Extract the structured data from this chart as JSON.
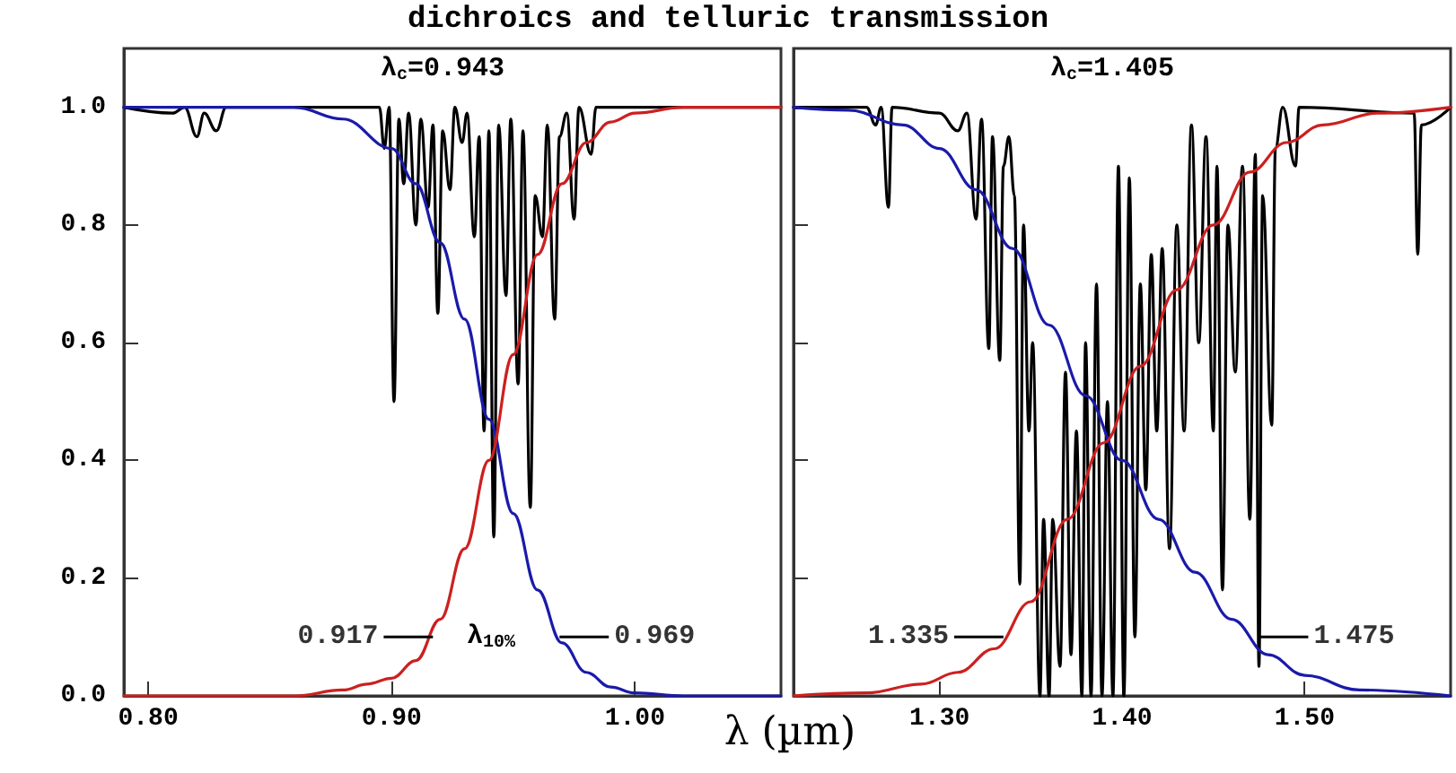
{
  "chart_data": [
    {
      "type": "line",
      "title": "dichroics and telluric transmission",
      "xlabel": "λ (µm)",
      "xlim": [
        0.79,
        1.06
      ],
      "ylim": [
        0,
        1.1
      ],
      "xticks": [
        {
          "value": 0.8,
          "label": "0.80"
        },
        {
          "value": 0.9,
          "label": "0.90"
        },
        {
          "value": 1,
          "label": "1.00"
        }
      ],
      "yticks": [
        {
          "value": 0,
          "label": "0.0"
        },
        {
          "value": 0.2,
          "label": "0.2"
        },
        {
          "value": 0.4,
          "label": "0.4"
        },
        {
          "value": 0.6,
          "label": "0.6"
        },
        {
          "value": 0.8,
          "label": "0.8"
        },
        {
          "value": 1,
          "label": "1.0"
        }
      ],
      "grid": false,
      "marker": "none",
      "line_style": "solid",
      "annotations": [
        "λ$_{c}$=0.943",
        "λ$_{10%}$",
        {
          "text": "0.917",
          "x": 0.917,
          "y": 0.1
        },
        {
          "text": "0.969",
          "x": 0.969,
          "y": 0.1
        }
      ],
      "series": [
        {
          "color": "#000000",
          "x": [
            0.79,
            0.81,
            0.815,
            0.82,
            0.823,
            0.828,
            0.832,
            0.86,
            0.895,
            0.897,
            0.899,
            0.901,
            0.903,
            0.905,
            0.907,
            0.91,
            0.912,
            0.915,
            0.917,
            0.919,
            0.921,
            0.924,
            0.926,
            0.929,
            0.931,
            0.934,
            0.936,
            0.938,
            0.94,
            0.942,
            0.944,
            0.947,
            0.949,
            0.952,
            0.954,
            0.957,
            0.959,
            0.962,
            0.964,
            0.967,
            0.969,
            0.972,
            0.975,
            0.977,
            0.982,
            0.984,
            1.06
          ],
          "values": [
            1,
            0.99,
            1,
            0.95,
            0.99,
            0.96,
            1,
            1,
            1,
            0.93,
            1,
            0.5,
            0.98,
            0.87,
            0.99,
            0.8,
            0.98,
            0.83,
            0.97,
            0.65,
            0.96,
            0.86,
            1,
            0.94,
            0.99,
            0.78,
            0.95,
            0.45,
            0.96,
            0.27,
            0.97,
            0.68,
            0.98,
            0.53,
            0.96,
            0.32,
            0.85,
            0.78,
            0.97,
            0.64,
            0.95,
            0.99,
            0.81,
            1,
            0.92,
            1,
            1
          ]
        },
        {
          "color": "#1a1aaa",
          "x": [
            0.79,
            0.86,
            0.88,
            0.9,
            0.91,
            0.92,
            0.93,
            0.94,
            0.95,
            0.96,
            0.97,
            0.98,
            0.99,
            1,
            1.02,
            1.06
          ],
          "values": [
            1,
            1,
            0.98,
            0.93,
            0.87,
            0.77,
            0.64,
            0.47,
            0.31,
            0.18,
            0.09,
            0.04,
            0.015,
            0.005,
            0,
            0
          ]
        },
        {
          "color": "#cc2020",
          "x": [
            0.79,
            0.86,
            0.88,
            0.89,
            0.9,
            0.91,
            0.92,
            0.93,
            0.94,
            0.95,
            0.96,
            0.97,
            0.98,
            0.99,
            1,
            1.02,
            1.06
          ],
          "values": [
            0,
            0,
            0.01,
            0.02,
            0.03,
            0.06,
            0.13,
            0.25,
            0.4,
            0.58,
            0.75,
            0.87,
            0.94,
            0.975,
            0.99,
            1,
            1
          ]
        }
      ]
    },
    {
      "type": "line",
      "xlim": [
        1.22,
        1.58
      ],
      "ylim": [
        0,
        1.1
      ],
      "tick_labels": "x",
      "xticks": [
        {
          "value": 1.3,
          "label": "1.30"
        },
        {
          "value": 1.4,
          "label": "1.40"
        },
        {
          "value": 1.5,
          "label": "1.50"
        }
      ],
      "yticks": [
        {
          "value": 0,
          "label": null
        },
        {
          "value": 0.2,
          "label": null
        },
        {
          "value": 0.4,
          "label": null
        },
        {
          "value": 0.6,
          "label": null
        },
        {
          "value": 0.8,
          "label": null
        },
        {
          "value": 1,
          "label": null
        }
      ],
      "grid": false,
      "marker": "none",
      "line_style": "solid",
      "annotations": [
        "λ$_{c}$=1.405",
        {
          "text": "1.335",
          "x": 1.335,
          "y": 0.1
        },
        {
          "text": "1.475",
          "x": 1.475,
          "y": 0.1
        }
      ],
      "series": [
        {
          "color": "#000000",
          "x": [
            1.22,
            1.26,
            1.265,
            1.268,
            1.272,
            1.274,
            1.3,
            1.31,
            1.315,
            1.32,
            1.323,
            1.327,
            1.329,
            1.333,
            1.335,
            1.338,
            1.341,
            1.344,
            1.346,
            1.349,
            1.351,
            1.355,
            1.357,
            1.36,
            1.362,
            1.366,
            1.369,
            1.372,
            1.375,
            1.378,
            1.38,
            1.383,
            1.386,
            1.389,
            1.392,
            1.395,
            1.398,
            1.401,
            1.404,
            1.407,
            1.41,
            1.413,
            1.416,
            1.419,
            1.422,
            1.426,
            1.43,
            1.434,
            1.438,
            1.442,
            1.446,
            1.45,
            1.452,
            1.455,
            1.458,
            1.462,
            1.466,
            1.47,
            1.473,
            1.475,
            1.477,
            1.482,
            1.484,
            1.488,
            1.495,
            1.497,
            1.56,
            1.562,
            1.564,
            1.58
          ],
          "values": [
            1,
            1,
            0.97,
            1,
            0.83,
            1,
            0.99,
            0.96,
            0.99,
            0.81,
            0.98,
            0.59,
            0.95,
            0.57,
            0.9,
            0.95,
            0.85,
            0.19,
            0.8,
            0.45,
            0.6,
            0,
            0.3,
            0,
            0.3,
            0.05,
            0.55,
            0.07,
            0.45,
            0,
            0.6,
            0,
            0.7,
            0,
            0.5,
            0,
            0.9,
            0,
            0.88,
            0.1,
            0.7,
            0.35,
            0.75,
            0.45,
            0.76,
            0.25,
            0.8,
            0.45,
            0.97,
            0.6,
            0.95,
            0.45,
            0.9,
            0.18,
            0.8,
            0.55,
            0.9,
            0.3,
            0.92,
            0.05,
            0.85,
            0.46,
            0.93,
            1,
            0.9,
            1,
            0.99,
            0.75,
            0.97,
            1
          ]
        },
        {
          "color": "#1a1aaa",
          "x": [
            1.22,
            1.25,
            1.28,
            1.3,
            1.32,
            1.34,
            1.36,
            1.38,
            1.4,
            1.42,
            1.44,
            1.46,
            1.48,
            1.5,
            1.53,
            1.58
          ],
          "values": [
            1,
            0.995,
            0.97,
            0.93,
            0.86,
            0.76,
            0.63,
            0.51,
            0.4,
            0.3,
            0.21,
            0.13,
            0.07,
            0.035,
            0.01,
            0
          ]
        },
        {
          "color": "#cc2020",
          "x": [
            1.22,
            1.26,
            1.29,
            1.31,
            1.33,
            1.35,
            1.37,
            1.39,
            1.41,
            1.43,
            1.45,
            1.47,
            1.49,
            1.51,
            1.54,
            1.58
          ],
          "values": [
            0,
            0.005,
            0.02,
            0.04,
            0.08,
            0.16,
            0.3,
            0.43,
            0.56,
            0.69,
            0.8,
            0.89,
            0.94,
            0.97,
            0.99,
            1
          ]
        }
      ]
    }
  ]
}
